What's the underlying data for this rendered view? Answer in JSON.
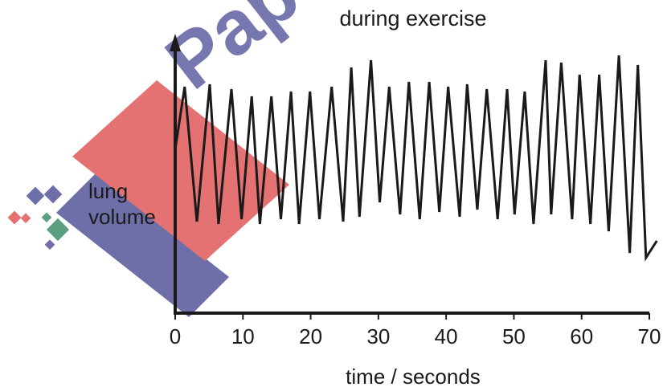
{
  "watermark": {
    "text": "Papa",
    "colors": {
      "primary": "#e05a5a",
      "secondary": "#55579a",
      "tertiary": "#3f8f6a"
    }
  },
  "chart_data": {
    "type": "line",
    "title": "during exercise",
    "xlabel": "time / seconds",
    "ylabel": "lung volume",
    "ylabel_lines": [
      "lung",
      "volume"
    ],
    "xlim": [
      0,
      70
    ],
    "x_ticks": [
      0,
      10,
      20,
      30,
      40,
      50,
      60,
      70
    ],
    "y_ticks": [],
    "ylim": [
      0,
      100
    ],
    "grid": false,
    "line_color": "#1a1a1a",
    "series": [
      {
        "x": [
          0,
          1.4,
          3.2,
          5.1,
          6.4,
          8.3,
          9.8,
          11.3,
          12.5,
          14.2,
          15.6,
          17.1,
          18.3,
          19.9,
          21.3,
          23.1,
          24.8,
          26.0,
          27.2,
          28.9,
          30.2,
          31.6,
          33.2,
          34.5,
          36.1,
          37.5,
          39.0,
          40.3,
          42.0,
          43.1,
          44.6,
          46.0,
          47.6,
          49.0,
          50.1,
          51.6,
          52.9,
          54.7,
          55.5,
          57.0,
          58.6,
          59.7,
          61.3,
          62.6,
          64.0,
          65.5,
          67.1,
          68.3,
          69.5,
          71.1
        ],
        "y": [
          58,
          84,
          28,
          85,
          27,
          83,
          29,
          80,
          27,
          80,
          29,
          82,
          27,
          82,
          29,
          84,
          28,
          92,
          30,
          95,
          36,
          84,
          31,
          86,
          29,
          86,
          32,
          84,
          30,
          85,
          33,
          83,
          29,
          83,
          31,
          82,
          27,
          95,
          31,
          94,
          29,
          89,
          27,
          89,
          24,
          97,
          15,
          93,
          13,
          20
        ]
      }
    ]
  }
}
